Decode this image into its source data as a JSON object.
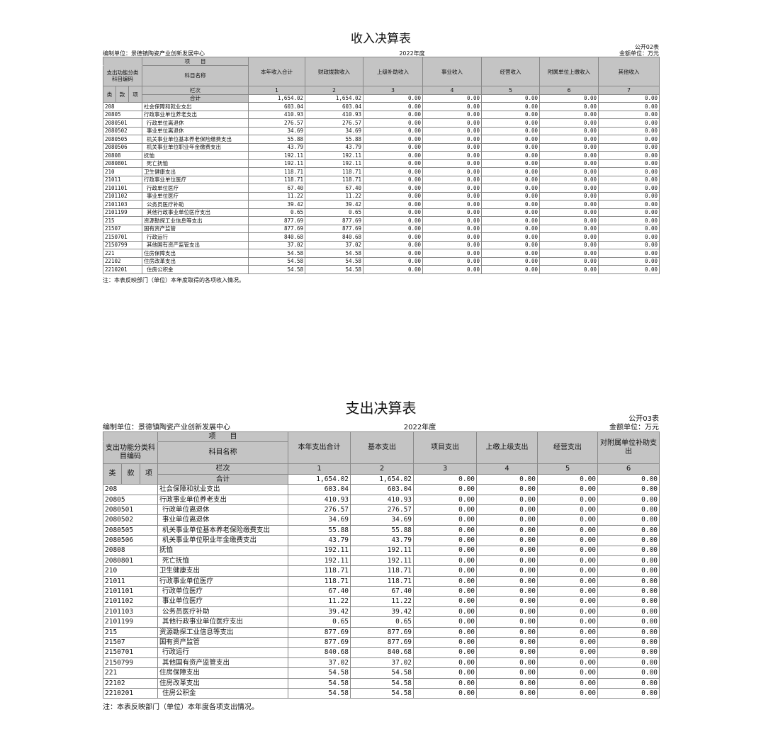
{
  "unit": "编制单位：景德镇陶瓷产业创新发展中心",
  "year": "2022年度",
  "money_unit": "金额单位：万元",
  "header_item": "项　　目",
  "header_code": "支出功能分类科目编码",
  "header_name": "科目名称",
  "header_lanci": "栏次",
  "header_total": "合计",
  "header_lei": "类",
  "header_kuan": "款",
  "header_xiang": "项",
  "income": {
    "title": "收入决算表",
    "table_no": "公开02表",
    "columns": [
      "本年收入合计",
      "财政拨款收入",
      "上级补助收入",
      "事业收入",
      "经营收入",
      "附属单位上缴收入",
      "其他收入"
    ],
    "col_nums": [
      "1",
      "2",
      "3",
      "4",
      "5",
      "6",
      "7"
    ],
    "note": "注：本表反映部门（单位）本年度取得的各项收入情况。"
  },
  "expense": {
    "title": "支出决算表",
    "table_no": "公开03表",
    "columns": [
      "本年支出合计",
      "基本支出",
      "项目支出",
      "上缴上级支出",
      "经营支出",
      "对附属单位补助支出"
    ],
    "col_nums": [
      "1",
      "2",
      "3",
      "4",
      "5",
      "6"
    ],
    "note": "注：本表反映部门（单位）本年度各项支出情况。"
  },
  "total": "1,654.02",
  "zero": "0.00",
  "rows": [
    [
      "208",
      "社会保障和就业支出",
      "603.04",
      0
    ],
    [
      "20805",
      "行政事业单位养老支出",
      "410.93",
      0
    ],
    [
      "2080501",
      "行政单位离退休",
      "276.57",
      1
    ],
    [
      "2080502",
      "事业单位离退休",
      "34.69",
      1
    ],
    [
      "2080505",
      "机关事业单位基本养老保险缴费支出",
      "55.88",
      1
    ],
    [
      "2080506",
      "机关事业单位职业年金缴费支出",
      "43.79",
      1
    ],
    [
      "20808",
      "抚恤",
      "192.11",
      0
    ],
    [
      "2080801",
      "死亡抚恤",
      "192.11",
      1
    ],
    [
      "210",
      "卫生健康支出",
      "118.71",
      0
    ],
    [
      "21011",
      "行政事业单位医疗",
      "118.71",
      0
    ],
    [
      "2101101",
      "行政单位医疗",
      "67.40",
      1
    ],
    [
      "2101102",
      "事业单位医疗",
      "11.22",
      1
    ],
    [
      "2101103",
      "公务员医疗补助",
      "39.42",
      1
    ],
    [
      "2101199",
      "其他行政事业单位医疗支出",
      "0.65",
      1
    ],
    [
      "215",
      "资源勘探工业信息等支出",
      "877.69",
      0
    ],
    [
      "21507",
      "国有资产监管",
      "877.69",
      0
    ],
    [
      "2150701",
      "行政运行",
      "840.68",
      1
    ],
    [
      "2150799",
      "其他国有资产监管支出",
      "37.02",
      1
    ],
    [
      "221",
      "住房保障支出",
      "54.58",
      0
    ],
    [
      "22102",
      "住房改革支出",
      "54.58",
      0
    ],
    [
      "2210201",
      "住房公积金",
      "54.58",
      1
    ]
  ]
}
